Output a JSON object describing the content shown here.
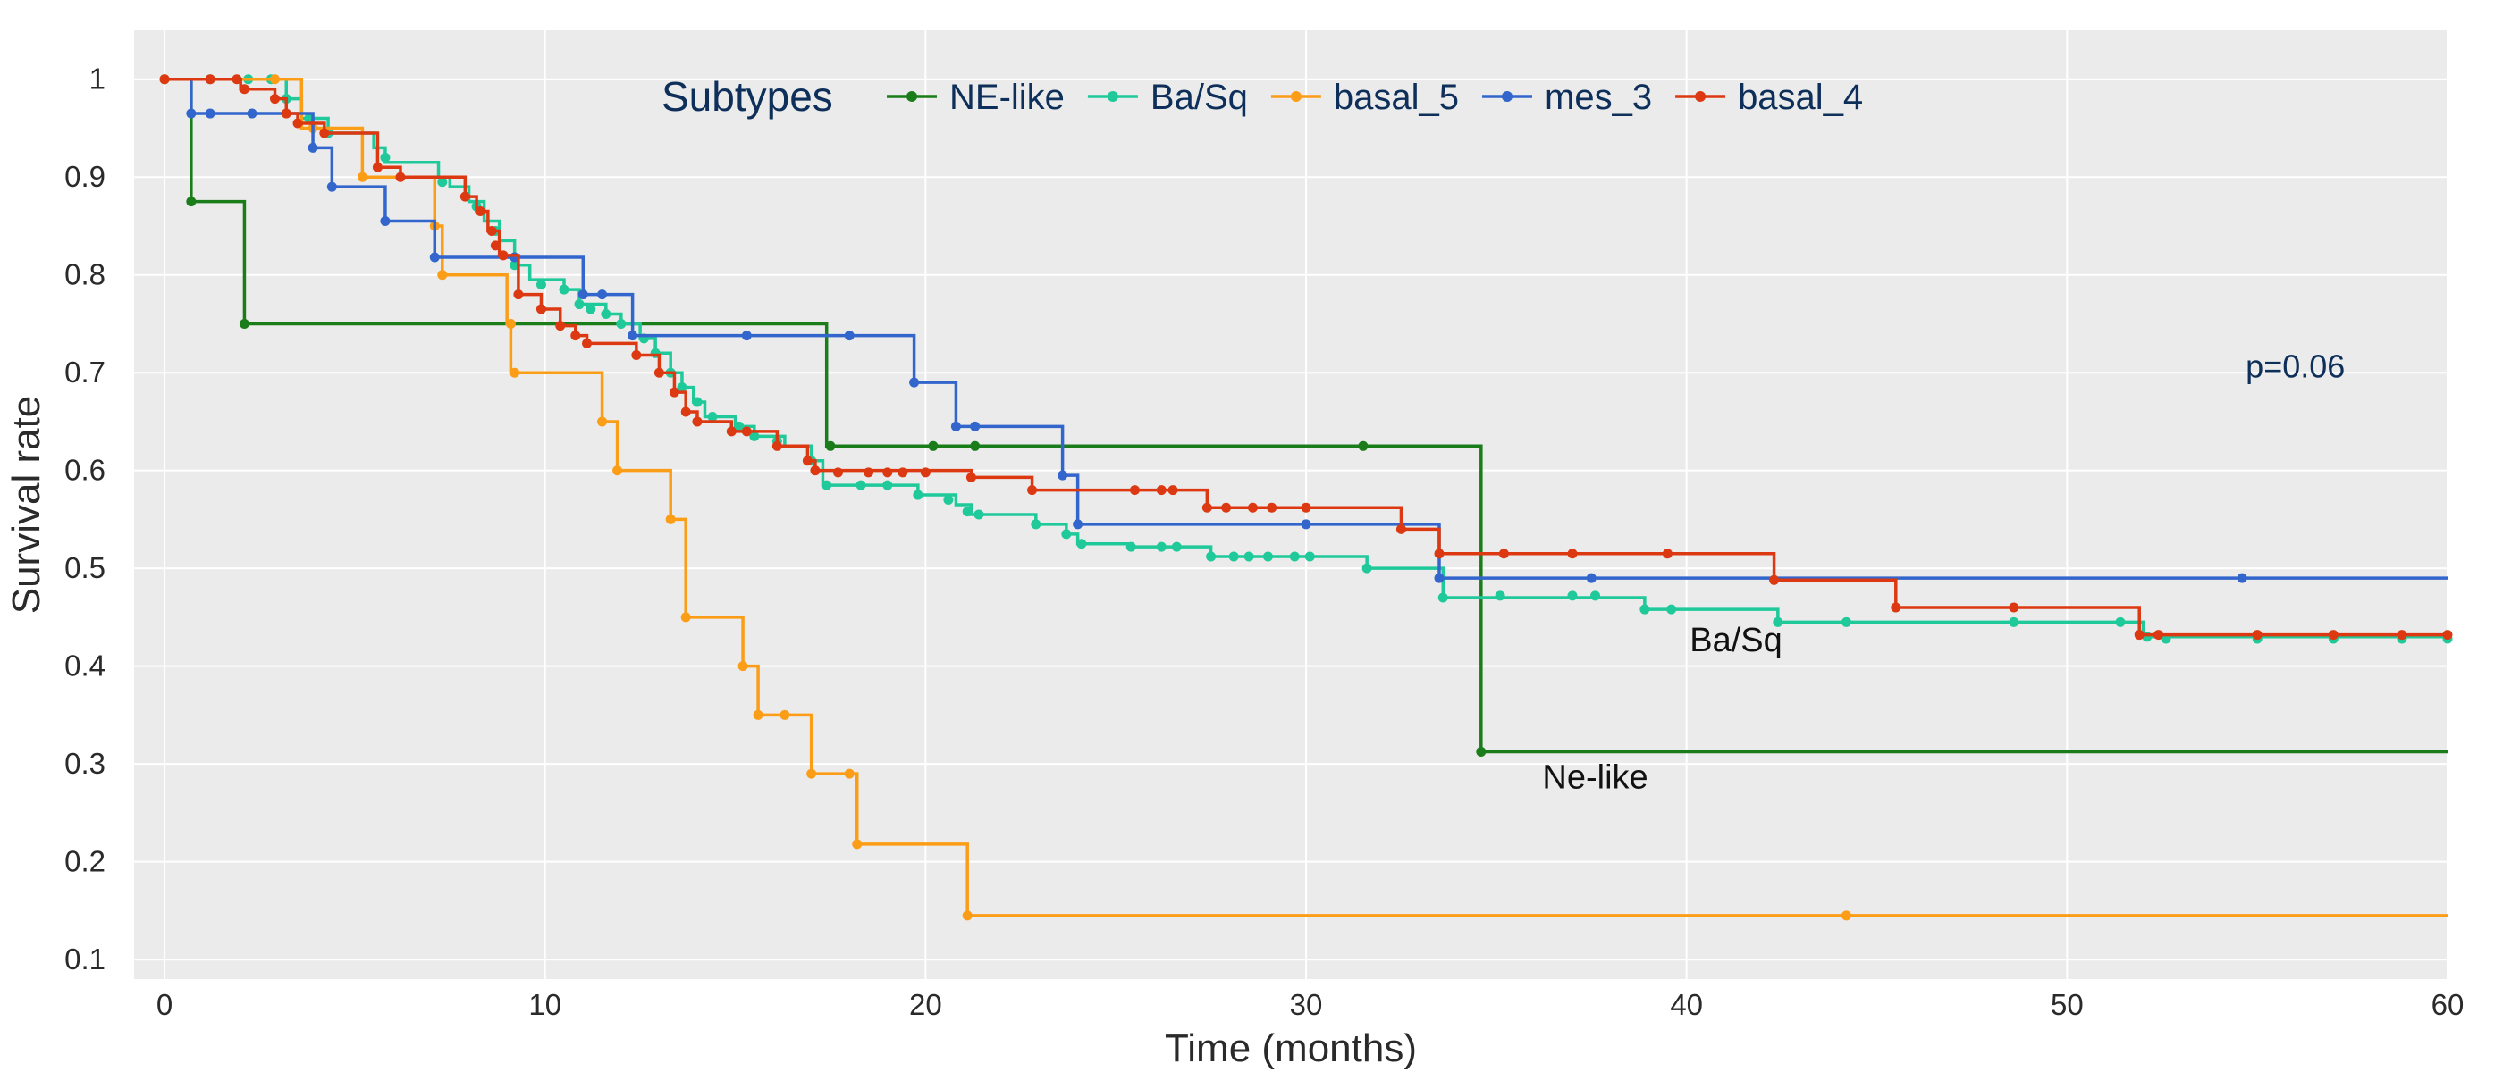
{
  "chart_data": {
    "type": "line",
    "xlabel": "Time (months)",
    "ylabel": "Survival rate",
    "xlim": [
      -0.8,
      60
    ],
    "ylim": [
      0.08,
      1.05
    ],
    "x_ticks": [
      0,
      10,
      20,
      30,
      40,
      50,
      60
    ],
    "y_ticks": [
      0.1,
      0.2,
      0.3,
      0.4,
      0.5,
      0.6,
      0.7,
      0.8,
      0.9,
      1
    ],
    "x_tick_labels": [
      "0",
      "10",
      "20",
      "30",
      "40",
      "50",
      "60"
    ],
    "y_tick_labels": [
      "0.1",
      "0.2",
      "0.3",
      "0.4",
      "0.5",
      "0.6",
      "0.7",
      "0.8",
      "0.9",
      "1"
    ],
    "grid": true,
    "legend": {
      "title": "Subtypes",
      "position": "top",
      "orientation": "horizontal"
    },
    "annotations": [
      {
        "text": "p=0.06",
        "x": 56,
        "y": 0.695
      },
      {
        "text": "Ba/Sq",
        "x": 41.3,
        "y": 0.415
      },
      {
        "text": "Ne-like",
        "x": 37.6,
        "y": 0.275
      }
    ],
    "series": [
      {
        "name": "NE-like",
        "color": "#1a7d1a",
        "steps": [
          [
            0,
            1
          ],
          [
            0.7,
            0.875
          ],
          [
            2.1,
            0.75
          ],
          [
            17.4,
            0.625
          ],
          [
            34.6,
            0.3125
          ],
          [
            60,
            0.3125
          ]
        ],
        "censors": [
          [
            0,
            1
          ],
          [
            0.7,
            0.875
          ],
          [
            2.1,
            0.75
          ],
          [
            17.5,
            0.625
          ],
          [
            20.2,
            0.625
          ],
          [
            21.3,
            0.625
          ],
          [
            31.5,
            0.625
          ],
          [
            34.6,
            0.3125
          ]
        ]
      },
      {
        "name": "Ba/Sq",
        "color": "#1fc99a",
        "steps": [
          [
            0,
            1
          ],
          [
            3.2,
            0.98
          ],
          [
            3.6,
            0.96
          ],
          [
            4.3,
            0.945
          ],
          [
            5.5,
            0.93
          ],
          [
            5.8,
            0.915
          ],
          [
            7.2,
            0.9
          ],
          [
            7.5,
            0.89
          ],
          [
            8,
            0.875
          ],
          [
            8.4,
            0.855
          ],
          [
            8.8,
            0.835
          ],
          [
            9.2,
            0.81
          ],
          [
            9.6,
            0.795
          ],
          [
            10.5,
            0.785
          ],
          [
            10.9,
            0.77
          ],
          [
            11.6,
            0.76
          ],
          [
            12,
            0.75
          ],
          [
            12.5,
            0.735
          ],
          [
            12.9,
            0.72
          ],
          [
            13.3,
            0.7
          ],
          [
            13.6,
            0.685
          ],
          [
            13.9,
            0.67
          ],
          [
            14.2,
            0.655
          ],
          [
            15,
            0.645
          ],
          [
            15.5,
            0.635
          ],
          [
            16.3,
            0.625
          ],
          [
            17,
            0.61
          ],
          [
            17.3,
            0.585
          ],
          [
            19.8,
            0.575
          ],
          [
            20.8,
            0.565
          ],
          [
            21.2,
            0.555
          ],
          [
            22.9,
            0.545
          ],
          [
            23.7,
            0.535
          ],
          [
            24,
            0.525
          ],
          [
            25.4,
            0.522
          ],
          [
            27.5,
            0.512
          ],
          [
            31.6,
            0.5
          ],
          [
            33.6,
            0.47
          ],
          [
            38.9,
            0.458
          ],
          [
            42.4,
            0.445
          ],
          [
            52,
            0.43
          ],
          [
            60,
            0.428
          ]
        ],
        "censors": [
          [
            1.2,
            1
          ],
          [
            2.2,
            1
          ],
          [
            2.8,
            1
          ],
          [
            3.2,
            0.98
          ],
          [
            3.8,
            0.96
          ],
          [
            4.3,
            0.945
          ],
          [
            5.8,
            0.92
          ],
          [
            7.3,
            0.895
          ],
          [
            8.2,
            0.87
          ],
          [
            8.7,
            0.845
          ],
          [
            9.2,
            0.81
          ],
          [
            9.9,
            0.79
          ],
          [
            10.5,
            0.785
          ],
          [
            10.9,
            0.77
          ],
          [
            11.2,
            0.765
          ],
          [
            11.6,
            0.76
          ],
          [
            12,
            0.75
          ],
          [
            12.6,
            0.735
          ],
          [
            12.9,
            0.72
          ],
          [
            13.3,
            0.7
          ],
          [
            13.6,
            0.685
          ],
          [
            14,
            0.67
          ],
          [
            14.4,
            0.655
          ],
          [
            15.1,
            0.645
          ],
          [
            15.5,
            0.635
          ],
          [
            16.1,
            0.63
          ],
          [
            17,
            0.61
          ],
          [
            17.4,
            0.585
          ],
          [
            18.3,
            0.585
          ],
          [
            19,
            0.585
          ],
          [
            19.8,
            0.575
          ],
          [
            20.6,
            0.57
          ],
          [
            21.1,
            0.558
          ],
          [
            21.4,
            0.555
          ],
          [
            22.9,
            0.545
          ],
          [
            23.7,
            0.535
          ],
          [
            24.1,
            0.525
          ],
          [
            25.4,
            0.522
          ],
          [
            26.2,
            0.522
          ],
          [
            26.6,
            0.522
          ],
          [
            27.5,
            0.512
          ],
          [
            28.1,
            0.512
          ],
          [
            28.5,
            0.512
          ],
          [
            29,
            0.512
          ],
          [
            29.7,
            0.512
          ],
          [
            30.1,
            0.512
          ],
          [
            31.6,
            0.5
          ],
          [
            33.6,
            0.47
          ],
          [
            35.1,
            0.472
          ],
          [
            37,
            0.472
          ],
          [
            37.6,
            0.472
          ],
          [
            38.9,
            0.458
          ],
          [
            39.6,
            0.458
          ],
          [
            42.4,
            0.445
          ],
          [
            44.2,
            0.445
          ],
          [
            48.6,
            0.445
          ],
          [
            51.4,
            0.445
          ],
          [
            52.1,
            0.43
          ],
          [
            52.6,
            0.428
          ],
          [
            55,
            0.428
          ],
          [
            57,
            0.428
          ],
          [
            58.8,
            0.428
          ],
          [
            60,
            0.428
          ]
        ]
      },
      {
        "name": "basal_5",
        "color": "#fc9d17",
        "steps": [
          [
            0,
            1
          ],
          [
            3.6,
            0.95
          ],
          [
            5.2,
            0.9
          ],
          [
            7.1,
            0.85
          ],
          [
            7.3,
            0.8
          ],
          [
            9,
            0.75
          ],
          [
            9.1,
            0.7
          ],
          [
            11.5,
            0.65
          ],
          [
            11.9,
            0.6
          ],
          [
            13.3,
            0.55
          ],
          [
            13.7,
            0.45
          ],
          [
            15.2,
            0.4
          ],
          [
            15.6,
            0.35
          ],
          [
            17,
            0.29
          ],
          [
            18.2,
            0.218
          ],
          [
            21.1,
            0.145
          ],
          [
            60,
            0.145
          ]
        ],
        "censors": [
          [
            0,
            1
          ],
          [
            2.9,
            1
          ],
          [
            3.9,
            0.95
          ],
          [
            5.2,
            0.9
          ],
          [
            7.1,
            0.85
          ],
          [
            7.3,
            0.8
          ],
          [
            9.1,
            0.75
          ],
          [
            9.2,
            0.7
          ],
          [
            11.5,
            0.65
          ],
          [
            11.9,
            0.6
          ],
          [
            13.3,
            0.55
          ],
          [
            13.7,
            0.45
          ],
          [
            15.2,
            0.4
          ],
          [
            15.6,
            0.35
          ],
          [
            16.3,
            0.35
          ],
          [
            17,
            0.29
          ],
          [
            18,
            0.29
          ],
          [
            18.2,
            0.218
          ],
          [
            21.1,
            0.145
          ],
          [
            44.2,
            0.145
          ]
        ]
      },
      {
        "name": "mes_3",
        "color": "#3366cc",
        "steps": [
          [
            0,
            1
          ],
          [
            0.7,
            0.965
          ],
          [
            3.9,
            0.93
          ],
          [
            4.4,
            0.89
          ],
          [
            5.8,
            0.855
          ],
          [
            7.1,
            0.818
          ],
          [
            11,
            0.78
          ],
          [
            12.3,
            0.738
          ],
          [
            19.7,
            0.69
          ],
          [
            20.8,
            0.645
          ],
          [
            23.6,
            0.595
          ],
          [
            24,
            0.545
          ],
          [
            33.5,
            0.49
          ],
          [
            60,
            0.49
          ]
        ],
        "censors": [
          [
            0.7,
            0.965
          ],
          [
            1.2,
            0.965
          ],
          [
            2.3,
            0.965
          ],
          [
            3.9,
            0.93
          ],
          [
            4.4,
            0.89
          ],
          [
            5.8,
            0.855
          ],
          [
            7.1,
            0.818
          ],
          [
            9.2,
            0.818
          ],
          [
            11,
            0.78
          ],
          [
            11.5,
            0.78
          ],
          [
            12.3,
            0.738
          ],
          [
            15.3,
            0.738
          ],
          [
            18,
            0.738
          ],
          [
            19.7,
            0.69
          ],
          [
            20.8,
            0.645
          ],
          [
            21.3,
            0.645
          ],
          [
            23.6,
            0.595
          ],
          [
            24,
            0.545
          ],
          [
            30,
            0.545
          ],
          [
            33.5,
            0.49
          ],
          [
            37.5,
            0.49
          ],
          [
            54.6,
            0.49
          ]
        ]
      },
      {
        "name": "basal_4",
        "color": "#dc3912",
        "steps": [
          [
            0,
            1
          ],
          [
            2,
            0.99
          ],
          [
            2.9,
            0.98
          ],
          [
            3.2,
            0.965
          ],
          [
            3.5,
            0.955
          ],
          [
            4.2,
            0.945
          ],
          [
            5.6,
            0.91
          ],
          [
            6.2,
            0.9
          ],
          [
            7.9,
            0.88
          ],
          [
            8.2,
            0.865
          ],
          [
            8.5,
            0.845
          ],
          [
            8.8,
            0.82
          ],
          [
            9.3,
            0.78
          ],
          [
            9.9,
            0.765
          ],
          [
            10.4,
            0.748
          ],
          [
            10.8,
            0.738
          ],
          [
            11.1,
            0.73
          ],
          [
            12.4,
            0.718
          ],
          [
            13,
            0.7
          ],
          [
            13.4,
            0.68
          ],
          [
            13.7,
            0.66
          ],
          [
            14,
            0.65
          ],
          [
            14.9,
            0.64
          ],
          [
            16.1,
            0.625
          ],
          [
            16.9,
            0.61
          ],
          [
            17.1,
            0.6
          ],
          [
            21.2,
            0.593
          ],
          [
            22.8,
            0.58
          ],
          [
            27.4,
            0.562
          ],
          [
            32.5,
            0.54
          ],
          [
            33.5,
            0.515
          ],
          [
            42.3,
            0.488
          ],
          [
            45.5,
            0.46
          ],
          [
            51.9,
            0.432
          ],
          [
            60,
            0.432
          ]
        ],
        "censors": [
          [
            0,
            1
          ],
          [
            1.2,
            1
          ],
          [
            1.9,
            1
          ],
          [
            2.1,
            0.99
          ],
          [
            2.9,
            0.98
          ],
          [
            3.2,
            0.965
          ],
          [
            3.5,
            0.955
          ],
          [
            4.2,
            0.945
          ],
          [
            5.6,
            0.91
          ],
          [
            6.2,
            0.9
          ],
          [
            7.9,
            0.88
          ],
          [
            8.3,
            0.865
          ],
          [
            8.6,
            0.845
          ],
          [
            8.7,
            0.83
          ],
          [
            8.9,
            0.82
          ],
          [
            9.3,
            0.78
          ],
          [
            9.9,
            0.765
          ],
          [
            10.4,
            0.748
          ],
          [
            10.8,
            0.738
          ],
          [
            11.1,
            0.73
          ],
          [
            12.4,
            0.718
          ],
          [
            13,
            0.7
          ],
          [
            13.4,
            0.68
          ],
          [
            13.7,
            0.66
          ],
          [
            14,
            0.65
          ],
          [
            14.9,
            0.64
          ],
          [
            15.3,
            0.64
          ],
          [
            16.1,
            0.625
          ],
          [
            16.9,
            0.61
          ],
          [
            17.1,
            0.6
          ],
          [
            17.7,
            0.598
          ],
          [
            18.5,
            0.598
          ],
          [
            19,
            0.598
          ],
          [
            19.4,
            0.598
          ],
          [
            20,
            0.598
          ],
          [
            21.2,
            0.593
          ],
          [
            22.8,
            0.58
          ],
          [
            25.5,
            0.58
          ],
          [
            26.2,
            0.58
          ],
          [
            26.5,
            0.58
          ],
          [
            27.4,
            0.562
          ],
          [
            27.9,
            0.562
          ],
          [
            28.6,
            0.562
          ],
          [
            29.1,
            0.562
          ],
          [
            30,
            0.562
          ],
          [
            32.5,
            0.54
          ],
          [
            33.5,
            0.515
          ],
          [
            35.2,
            0.515
          ],
          [
            37,
            0.515
          ],
          [
            39.5,
            0.515
          ],
          [
            42.3,
            0.488
          ],
          [
            45.5,
            0.46
          ],
          [
            48.6,
            0.46
          ],
          [
            51.9,
            0.432
          ],
          [
            52.4,
            0.432
          ],
          [
            55,
            0.432
          ],
          [
            57,
            0.432
          ],
          [
            58.8,
            0.432
          ],
          [
            60,
            0.432
          ]
        ]
      }
    ]
  }
}
